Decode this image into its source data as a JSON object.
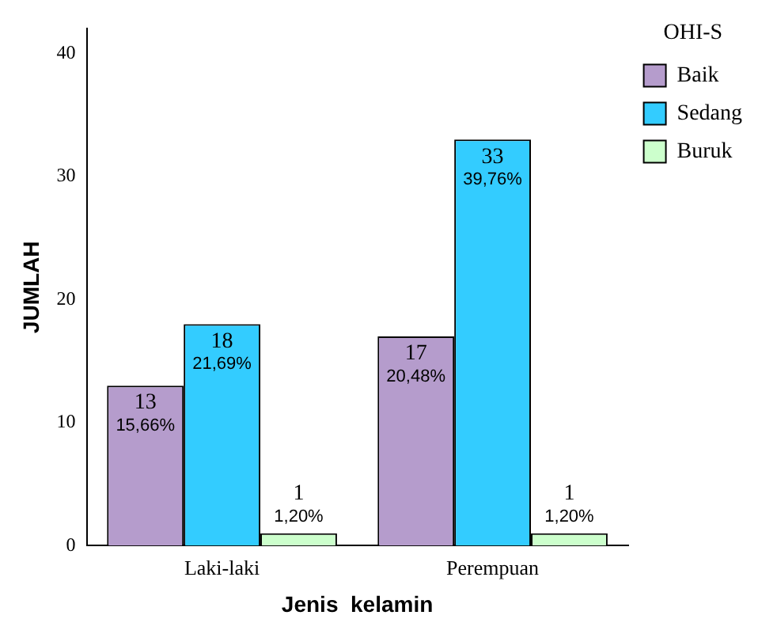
{
  "chart_data": {
    "type": "bar",
    "xlabel": "Jenis  kelamin",
    "ylabel": "JUMLAH",
    "legend_title": "OHI-S",
    "categories": [
      "Laki-laki",
      "Perempuan"
    ],
    "series": [
      {
        "name": "Baik",
        "color": "#b59ccc",
        "values": [
          13,
          17
        ],
        "value_labels": [
          "13\n15,66%",
          "17\n20,48%"
        ]
      },
      {
        "name": "Sedang",
        "color": "#33ccff",
        "values": [
          18,
          33
        ],
        "value_labels": [
          "18\n21,69%",
          "33\n39,76%"
        ]
      },
      {
        "name": "Buruk",
        "color": "#ccffcc",
        "values": [
          1,
          1
        ],
        "value_labels": [
          "1\n1,20%",
          "1\n1,20%"
        ]
      }
    ],
    "ylim": [
      0,
      42
    ],
    "yticks": [
      0,
      10,
      20,
      30,
      40
    ],
    "grid": false,
    "legend": "right"
  }
}
